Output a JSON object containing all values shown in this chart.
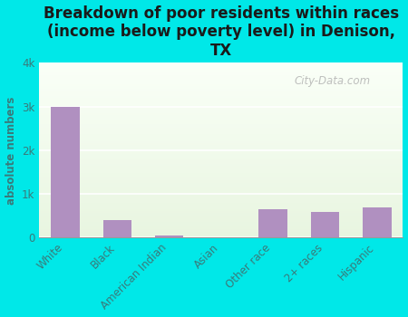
{
  "title": "Breakdown of poor residents within races\n(income below poverty level) in Denison,\nTX",
  "categories": [
    "White",
    "Black",
    "American Indian",
    "Asian",
    "Other race",
    "2+ races",
    "Hispanic"
  ],
  "values": [
    3000,
    400,
    50,
    0,
    650,
    580,
    680
  ],
  "bar_color": "#b090c0",
  "ylabel": "absolute numbers",
  "ylim": [
    0,
    4000
  ],
  "yticks": [
    0,
    1000,
    2000,
    3000,
    4000
  ],
  "ytick_labels": [
    "0",
    "1k",
    "2k",
    "3k",
    "4k"
  ],
  "background_color": "#00e8e8",
  "plot_bg_top": "#e8f5e0",
  "plot_bg_bottom": "#f8fff8",
  "text_color": "#3a7a7a",
  "watermark": "City-Data.com",
  "title_fontsize": 12,
  "label_fontsize": 8.5,
  "bar_width": 0.55
}
